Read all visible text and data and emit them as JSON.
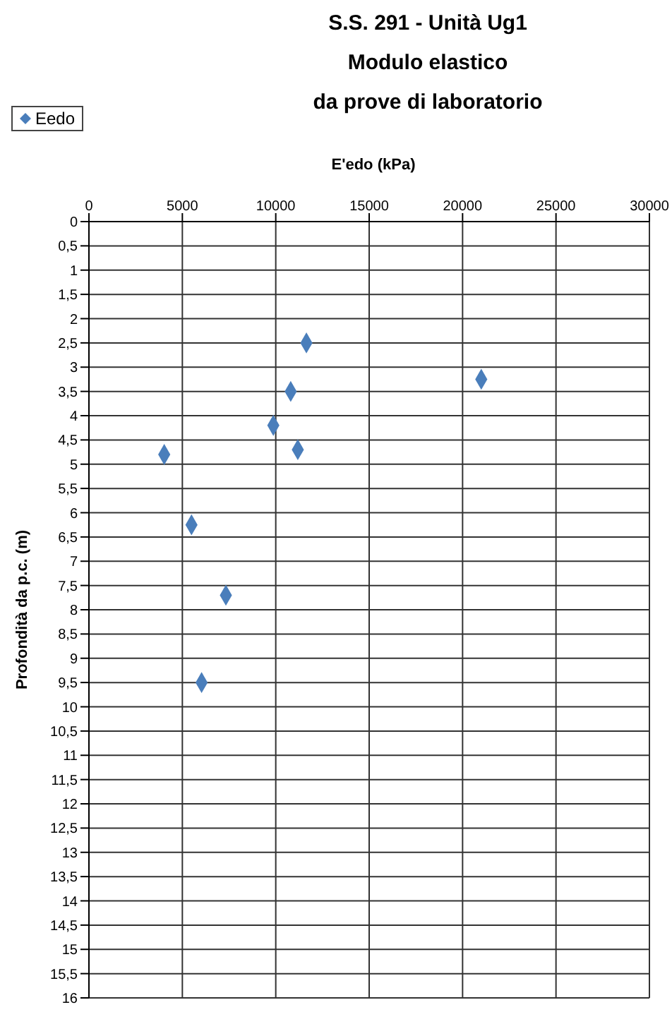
{
  "chart_data": {
    "type": "scatter",
    "title": "S.S. 291 - Unità Ug1",
    "subtitle": "Modulo elastico\nda prove di laboratorio",
    "xlabel": "E'edo (kPa)",
    "ylabel": "Profondità da p.c. (m)",
    "series": [
      {
        "name": "Eedo",
        "color": "#4a7ebb",
        "x": [
          11640,
          10800,
          21000,
          9870,
          11180,
          4030,
          5490,
          7330,
          6030
        ],
        "values": [
          2.5,
          3.5,
          3.25,
          4.2,
          4.7,
          4.8,
          6.25,
          7.7,
          9.5
        ]
      }
    ],
    "xlim": [
      0,
      30000
    ],
    "xticks": [
      0,
      5000,
      10000,
      15000,
      20000,
      25000,
      30000
    ],
    "ylim": [
      16,
      0
    ],
    "yticks": [
      0,
      {
        "value": 0.5,
        "label": "0,5"
      },
      1,
      {
        "value": 1.5,
        "label": "1,5"
      },
      2,
      {
        "value": 2.5,
        "label": "2,5"
      },
      3,
      {
        "value": 3.5,
        "label": "3,5"
      },
      4,
      {
        "value": 4.5,
        "label": "4,5"
      },
      5,
      {
        "value": 5.5,
        "label": "5,5"
      },
      6,
      {
        "value": 6.5,
        "label": "6,5"
      },
      7,
      {
        "value": 7.5,
        "label": "7,5"
      },
      8,
      {
        "value": 8.5,
        "label": "8,5"
      },
      9,
      {
        "value": 9.5,
        "label": "9,5"
      },
      10,
      {
        "value": 10.5,
        "label": "10,5"
      },
      11,
      {
        "value": 11.5,
        "label": "11,5"
      },
      12,
      {
        "value": 12.5,
        "label": "12,5"
      },
      13,
      {
        "value": 13.5,
        "label": "13,5"
      },
      14,
      {
        "value": 14.5,
        "label": "14,5"
      },
      15,
      {
        "value": 15.5,
        "label": "15,5"
      },
      16
    ],
    "grid": true,
    "legend": "top left",
    "marker": "diamond"
  }
}
